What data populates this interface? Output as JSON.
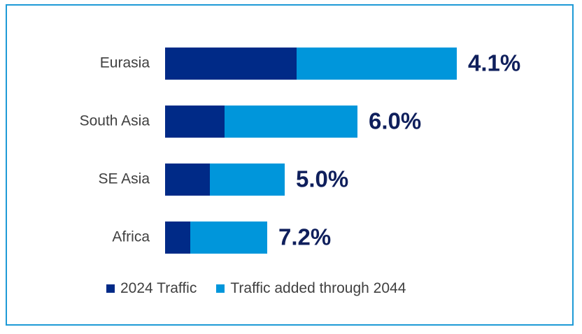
{
  "chart_data": {
    "type": "bar",
    "orientation": "horizontal",
    "stacked": true,
    "categories": [
      "Eurasia",
      "South Asia",
      "SE Asia",
      "Africa"
    ],
    "series": [
      {
        "name": "2024 Traffic",
        "color": "#002a87",
        "values": [
          188,
          85,
          64,
          36
        ]
      },
      {
        "name": "Traffic added through 2044",
        "color": "#0096db",
        "values": [
          229,
          190,
          107,
          110
        ]
      }
    ],
    "data_labels": [
      "4.1%",
      "6.0%",
      "5.0%",
      "7.2%"
    ],
    "xlim": [
      0,
      500
    ],
    "grid": false,
    "legend": "bottom"
  },
  "colors": {
    "label_text": "#404040",
    "data_label": "#0f1f5c",
    "border": "#1e9ad6"
  }
}
